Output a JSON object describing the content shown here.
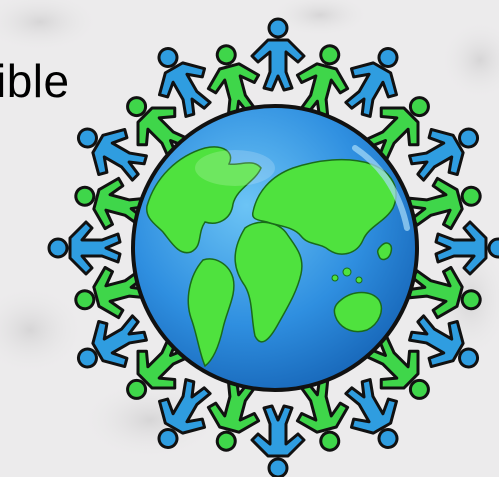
{
  "slide": {
    "text_fragment": "ible"
  },
  "clipart": {
    "icon": "people-around-globe-icon",
    "colors": {
      "people_blue": "#2f9de0",
      "people_green": "#3fd64a",
      "ocean": "#2f8fe0",
      "land": "#4fe23e",
      "outline": "#111111",
      "background": "#ecebec"
    }
  }
}
